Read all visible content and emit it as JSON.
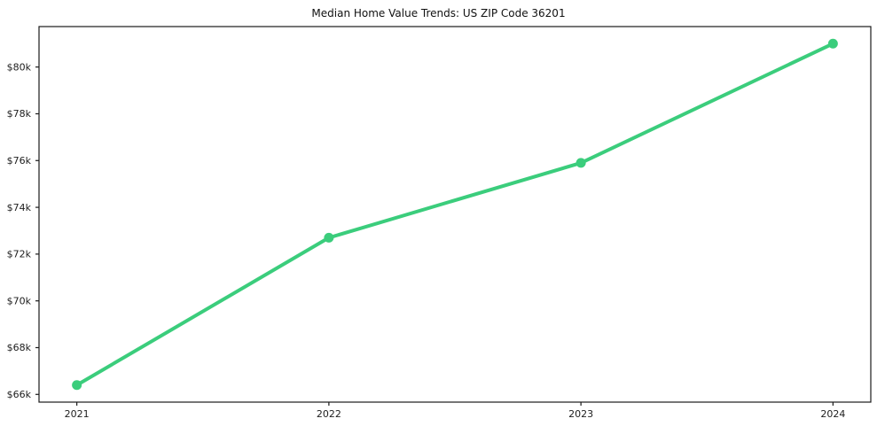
{
  "chart_data": {
    "type": "line",
    "title": "Median Home Value Trends: US ZIP Code 36201",
    "x": [
      2021,
      2022,
      2023,
      2024
    ],
    "x_tick_labels": [
      "2021",
      "2022",
      "2023",
      "2024"
    ],
    "series": [
      {
        "name": "Median Home Value",
        "values": [
          66400,
          72700,
          75900,
          81000
        ]
      }
    ],
    "y_ticks": [
      66000,
      68000,
      70000,
      72000,
      74000,
      76000,
      78000,
      80000
    ],
    "y_tick_labels": [
      "$66k",
      "$68k",
      "$70k",
      "$72k",
      "$74k",
      "$76k",
      "$78k",
      "$80k"
    ],
    "xlim": [
      2020.85,
      2024.15
    ],
    "ylim": [
      65670,
      81730
    ],
    "xlabel": "",
    "ylabel": "",
    "grid": false,
    "legend": "none",
    "line_color": "#3bcd7c",
    "marker_color": "#3bcd7c",
    "marker_shape": "circle",
    "axis_color": "#1a1a1a",
    "tick_label_color": "#202020",
    "background_color": "#ffffff"
  }
}
